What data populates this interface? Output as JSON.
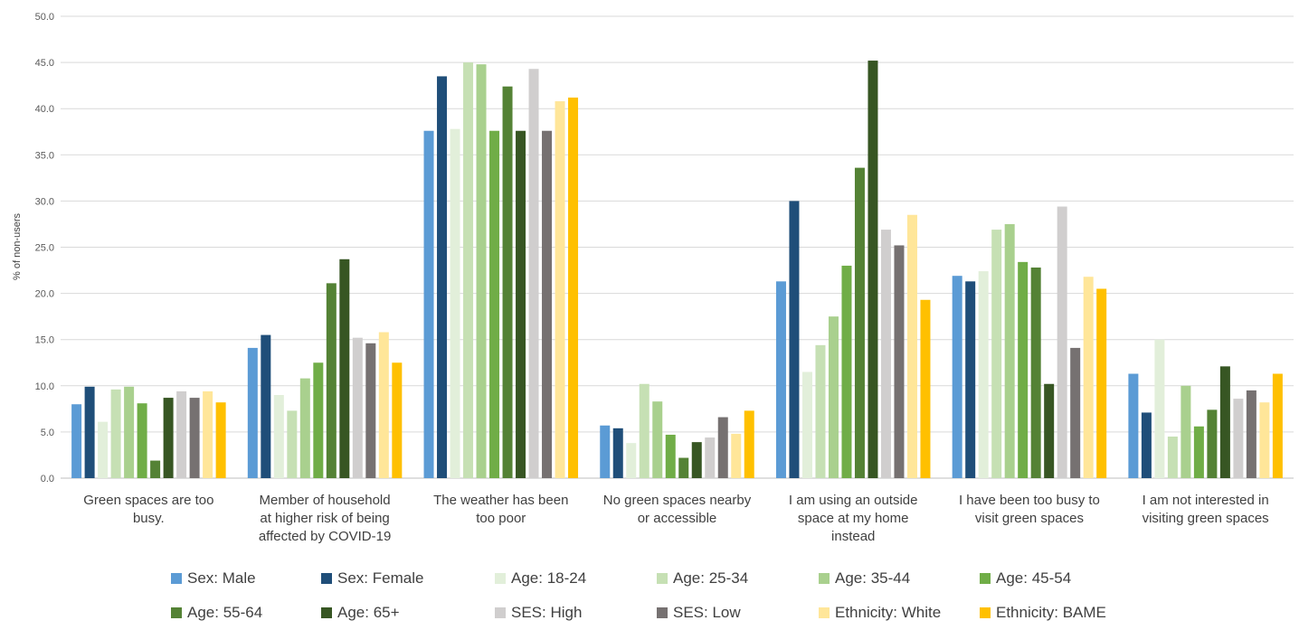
{
  "chart_data": {
    "type": "bar",
    "title": "",
    "xlabel": "",
    "ylabel": "% of non-users",
    "ylim": [
      0,
      50
    ],
    "yticks": [
      "0.0",
      "5.0",
      "10.0",
      "15.0",
      "20.0",
      "25.0",
      "30.0",
      "35.0",
      "40.0",
      "45.0",
      "50.0"
    ],
    "grid": true,
    "legend_position": "bottom",
    "categories": [
      [
        "Green spaces are too",
        "busy."
      ],
      [
        "Member of household",
        "at higher risk of being",
        "affected by COVID-19"
      ],
      [
        "The weather has been",
        "too poor"
      ],
      [
        "No green spaces nearby",
        "or accessible"
      ],
      [
        "I am using an outside",
        "space at my home",
        "instead"
      ],
      [
        "I have been too busy to",
        "visit green spaces"
      ],
      [
        "I am not interested in",
        "visiting green spaces"
      ]
    ],
    "series": [
      {
        "name": "Sex: Male",
        "color": "#5B9BD5",
        "values": [
          8.0,
          14.1,
          37.6,
          5.7,
          21.3,
          21.9,
          11.3
        ]
      },
      {
        "name": "Sex: Female",
        "color": "#1F4E79",
        "values": [
          9.9,
          15.5,
          43.5,
          5.4,
          30.0,
          21.3,
          7.1
        ]
      },
      {
        "name": "Age: 18-24",
        "color": "#E2EFDA",
        "values": [
          6.1,
          9.0,
          37.8,
          3.8,
          11.5,
          22.4,
          15.0
        ]
      },
      {
        "name": "Age: 25-34",
        "color": "#C6E0B4",
        "values": [
          9.6,
          7.3,
          45.0,
          10.2,
          14.4,
          26.9,
          4.5
        ]
      },
      {
        "name": "Age: 35-44",
        "color": "#A9D08E",
        "values": [
          9.9,
          10.8,
          44.8,
          8.3,
          17.5,
          27.5,
          10.0
        ]
      },
      {
        "name": "Age: 45-54",
        "color": "#70AD47",
        "values": [
          8.1,
          12.5,
          37.6,
          4.7,
          23.0,
          23.4,
          5.6
        ]
      },
      {
        "name": "Age: 55-64",
        "color": "#548235",
        "values": [
          1.9,
          21.1,
          42.4,
          2.2,
          33.6,
          22.8,
          7.4
        ]
      },
      {
        "name": "Age: 65+",
        "color": "#375623",
        "values": [
          8.7,
          23.7,
          37.6,
          3.9,
          45.2,
          10.2,
          12.1
        ]
      },
      {
        "name": "SES: High",
        "color": "#D0CECE",
        "values": [
          9.4,
          15.2,
          44.3,
          4.4,
          26.9,
          29.4,
          8.6
        ]
      },
      {
        "name": "SES: Low",
        "color": "#767171",
        "values": [
          8.7,
          14.6,
          37.6,
          6.6,
          25.2,
          14.1,
          9.5
        ]
      },
      {
        "name": "Ethnicity: White",
        "color": "#FFE699",
        "values": [
          9.4,
          15.8,
          40.8,
          4.8,
          28.5,
          21.8,
          8.2
        ]
      },
      {
        "name": "Ethnicity: BAME",
        "color": "#FFC000",
        "values": [
          8.2,
          12.5,
          41.2,
          7.3,
          19.3,
          20.5,
          11.3
        ]
      }
    ]
  }
}
